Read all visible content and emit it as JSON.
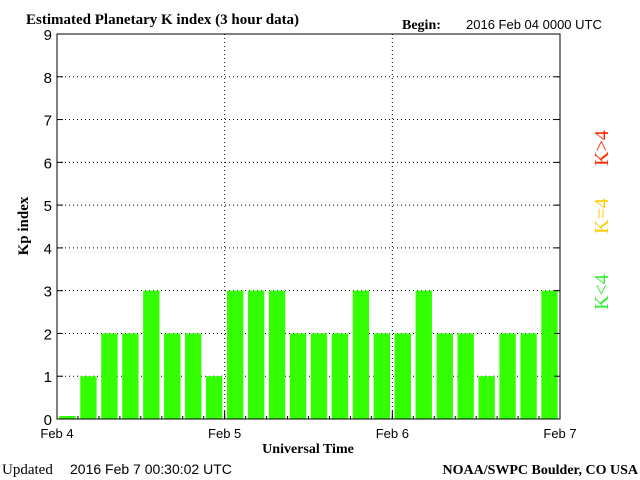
{
  "header": {
    "title": "Estimated Planetary K index (3 hour data)",
    "begin_label": "Begin:",
    "begin_value": "2016 Feb 04 0000 UTC"
  },
  "footer": {
    "updated_label": "Updated",
    "updated_value": "2016 Feb  7 00:30:02 UTC",
    "source": "NOAA/SWPC Boulder, CO USA"
  },
  "legend": {
    "high": {
      "text": "K>4",
      "color": "#ff2a00"
    },
    "equal": {
      "text": "K=4",
      "color": "#ffcc00"
    },
    "low": {
      "text": "K<4",
      "color": "#33ee33"
    }
  },
  "chart_data": {
    "type": "bar",
    "title": "Estimated Planetary K index (3 hour data)",
    "xlabel": "Universal Time",
    "ylabel": "Kp index",
    "ylim": [
      0,
      9
    ],
    "yticks": [
      "0",
      "1",
      "2",
      "3",
      "4",
      "5",
      "6",
      "7",
      "8",
      "9"
    ],
    "xticks": [
      "Feb 4",
      "Feb 5",
      "Feb 6",
      "Feb 7"
    ],
    "grid": true,
    "bar_color": "#33ff00",
    "categories": [
      "Feb 4 00",
      "Feb 4 03",
      "Feb 4 06",
      "Feb 4 09",
      "Feb 4 12",
      "Feb 4 15",
      "Feb 4 18",
      "Feb 4 21",
      "Feb 5 00",
      "Feb 5 03",
      "Feb 5 06",
      "Feb 5 09",
      "Feb 5 12",
      "Feb 5 15",
      "Feb 5 18",
      "Feb 5 21",
      "Feb 6 00",
      "Feb 6 03",
      "Feb 6 06",
      "Feb 6 09",
      "Feb 6 12",
      "Feb 6 15",
      "Feb 6 18",
      "Feb 6 21"
    ],
    "values": [
      0,
      1,
      2,
      2,
      3,
      2,
      2,
      1,
      3,
      3,
      3,
      2,
      2,
      2,
      3,
      2,
      2,
      3,
      2,
      2,
      1,
      2,
      2,
      3
    ]
  }
}
